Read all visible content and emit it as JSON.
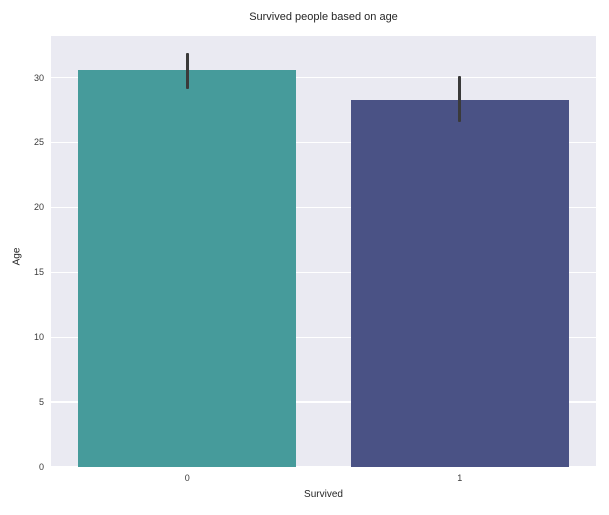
{
  "chart_data": {
    "type": "bar",
    "title": "Survived people based on age",
    "xlabel": "Survived",
    "ylabel": "Age",
    "categories": [
      "0",
      "1"
    ],
    "values": [
      30.6,
      28.3
    ],
    "error_bars": [
      [
        29.1,
        31.9
      ],
      [
        26.6,
        30.1
      ]
    ],
    "yticks": [
      0,
      5,
      10,
      15,
      20,
      25,
      30
    ],
    "ylim": [
      0,
      33.2
    ],
    "bar_colors": [
      "#469b9b",
      "#4a5285"
    ],
    "error_bar_color": "#3a3a3a",
    "plot_background": "#eaeaf2",
    "grid_color": "#ffffff",
    "grid": "horizontal",
    "legend_position": "none",
    "bar_width_fraction": 0.8
  }
}
